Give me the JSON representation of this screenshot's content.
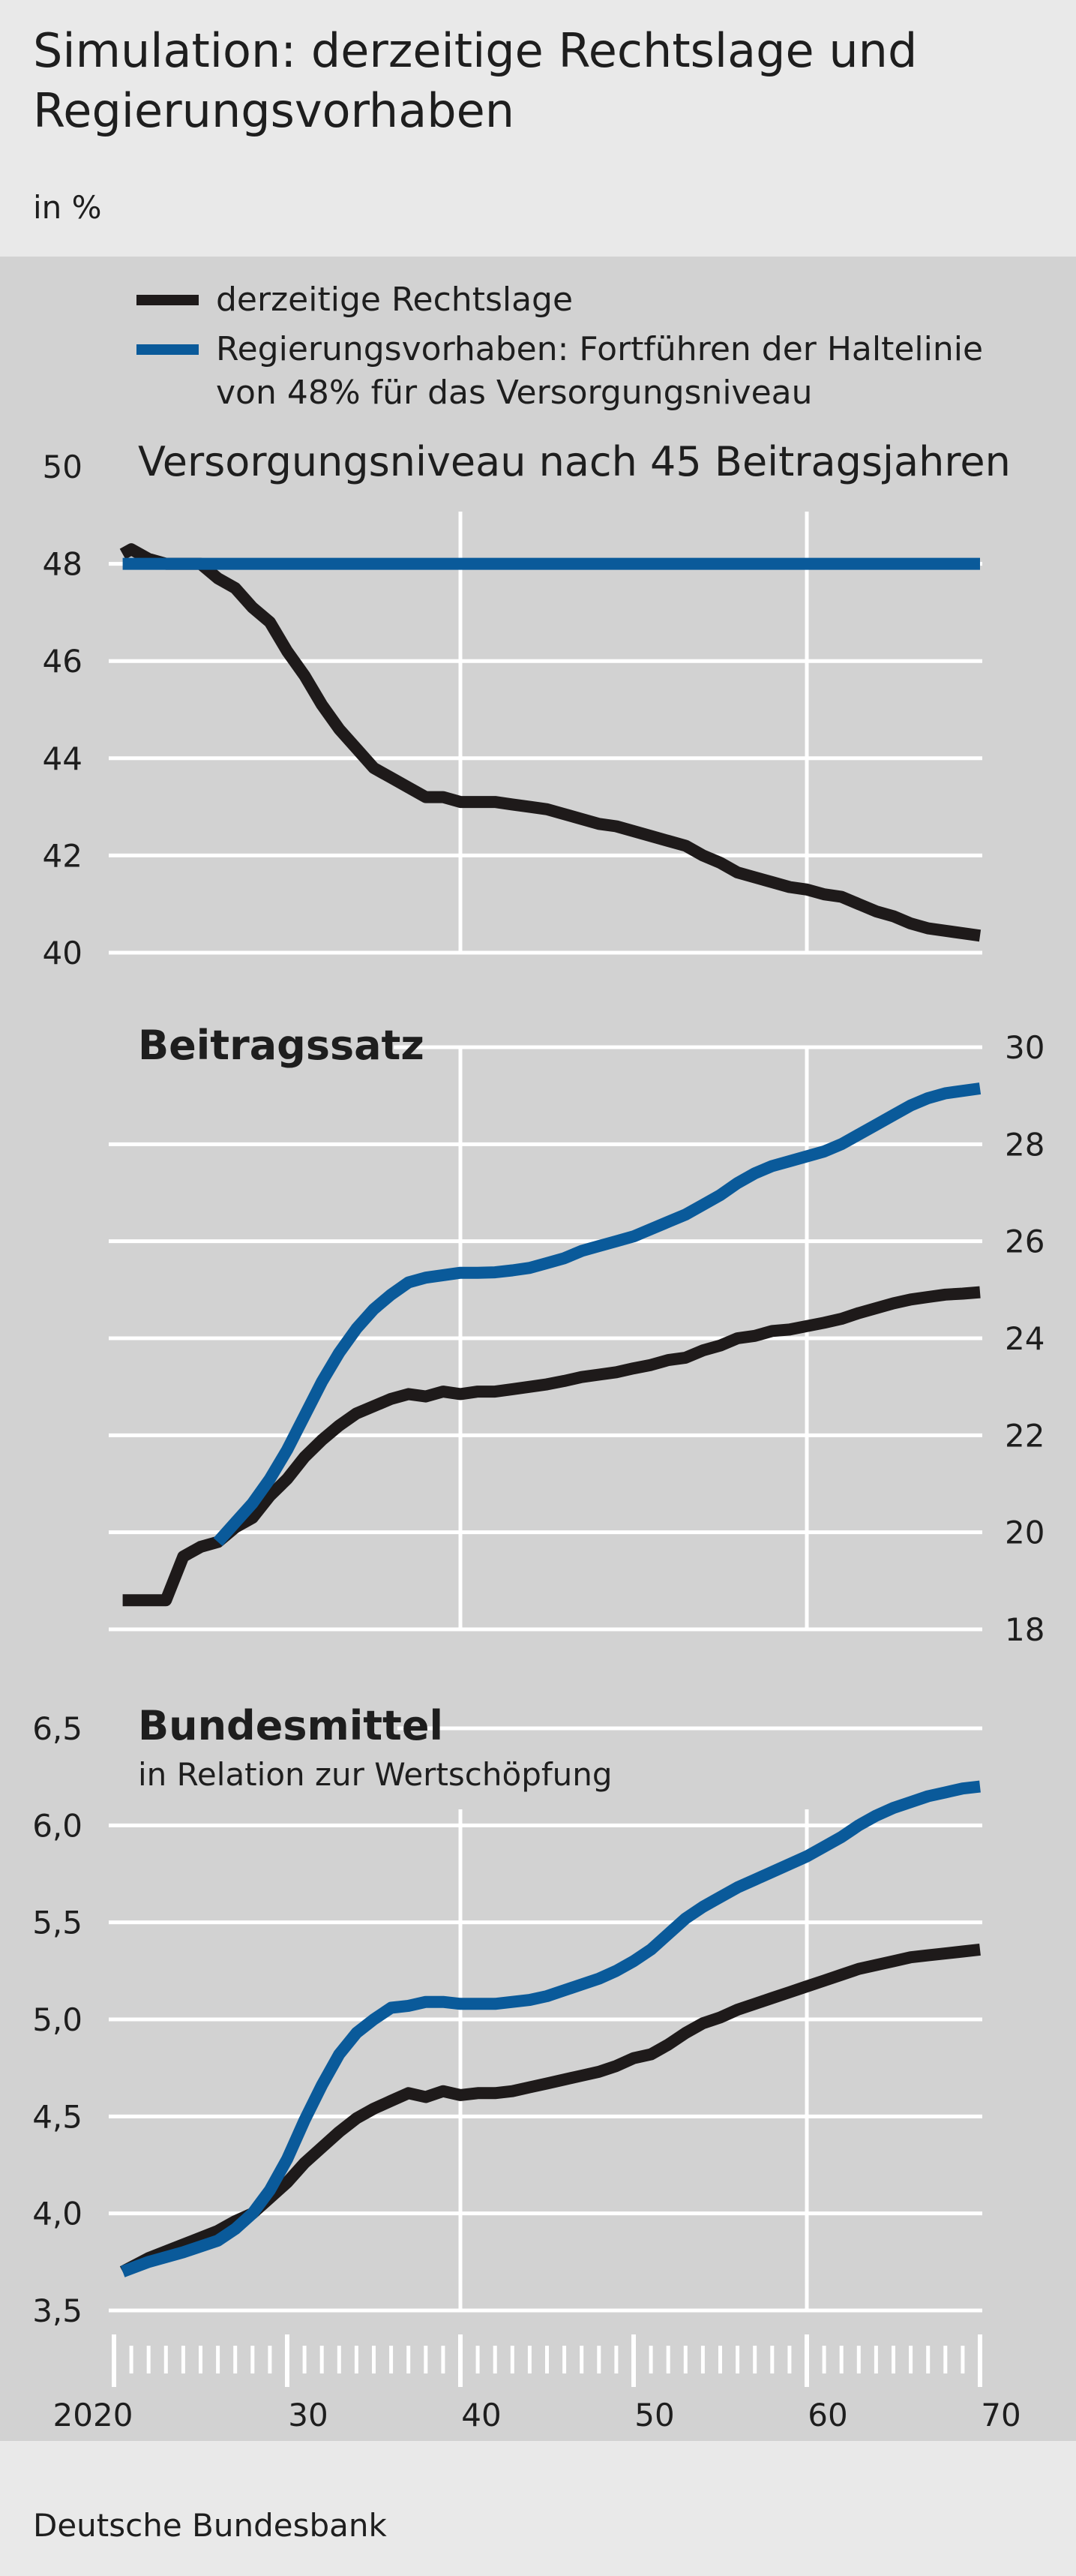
{
  "header": {
    "title": "Simulation: derzeitige Rechtslage und Regierungsvorhaben",
    "unit": "in %"
  },
  "footer": {
    "source": "Deutsche Bundesbank"
  },
  "colors": {
    "black_series": "#1e1a1a",
    "blue_series": "#0a5a9a",
    "grid": "#ffffff",
    "panel_bg": "#d2d2d2",
    "page_bg": "#e9e9e9"
  },
  "chart_data": {
    "type": "line",
    "legend": [
      {
        "label": "derzeitige Rechtslage",
        "color": "#1e1a1a"
      },
      {
        "label_lines": [
          "Regierungsvorhaben: Fortführen der Haltelinie",
          "von 48% für das Versorgungsniveau"
        ],
        "color": "#0a5a9a"
      }
    ],
    "x_ticks": [
      {
        "value": 2020,
        "label": "2020"
      },
      {
        "value": 2030,
        "label": "30"
      },
      {
        "value": 2040,
        "label": "40"
      },
      {
        "value": 2050,
        "label": "50"
      },
      {
        "value": 2060,
        "label": "60"
      },
      {
        "value": 2070,
        "label": "70"
      }
    ],
    "xlim": [
      2020,
      2070
    ],
    "panels": [
      {
        "title": "Versorgungsniveau nach 45 Beitragsjahren",
        "subtitle": "",
        "axis_side": "left",
        "ylim": [
          40,
          50
        ],
        "y_ticks": [
          {
            "value": 40,
            "label": "40"
          },
          {
            "value": 42,
            "label": "42"
          },
          {
            "value": 44,
            "label": "44"
          },
          {
            "value": 46,
            "label": "46"
          },
          {
            "value": 48,
            "label": "48"
          },
          {
            "value": 50,
            "label": "50"
          }
        ],
        "series": [
          {
            "key": "current",
            "x": [
              2020.5,
              2021,
              2022,
              2023,
              2024,
              2025,
              2026,
              2027,
              2028,
              2029,
              2030,
              2031,
              2032,
              2033,
              2034,
              2035,
              2036,
              2037,
              2038,
              2039,
              2040,
              2041,
              2042,
              2043,
              2044,
              2045,
              2046,
              2047,
              2048,
              2049,
              2050,
              2051,
              2052,
              2053,
              2054,
              2055,
              2056,
              2057,
              2058,
              2059,
              2060,
              2061,
              2062,
              2063,
              2064,
              2065,
              2066,
              2067,
              2068,
              2069,
              2070
            ],
            "values": [
              48.2,
              48.3,
              48.1,
              48.0,
              48.0,
              48.0,
              47.7,
              47.5,
              47.1,
              46.8,
              46.2,
              45.7,
              45.1,
              44.6,
              44.2,
              43.8,
              43.6,
              43.4,
              43.2,
              43.2,
              43.1,
              43.1,
              43.1,
              43.05,
              43.0,
              42.95,
              42.85,
              42.75,
              42.65,
              42.6,
              42.5,
              42.4,
              42.3,
              42.2,
              42.0,
              41.85,
              41.65,
              41.55,
              41.45,
              41.35,
              41.3,
              41.2,
              41.15,
              41.0,
              40.85,
              40.75,
              40.6,
              40.5,
              40.45,
              40.4,
              40.35
            ]
          },
          {
            "key": "plan",
            "x": [
              2020.5,
              2070
            ],
            "values": [
              48.0,
              48.0
            ]
          }
        ]
      },
      {
        "title": "Beitragssatz",
        "subtitle": "",
        "axis_side": "right",
        "ylim": [
          18,
          30
        ],
        "y_ticks": [
          {
            "value": 18,
            "label": "18"
          },
          {
            "value": 20,
            "label": "20"
          },
          {
            "value": 22,
            "label": "22"
          },
          {
            "value": 24,
            "label": "24"
          },
          {
            "value": 26,
            "label": "26"
          },
          {
            "value": 28,
            "label": "28"
          },
          {
            "value": 30,
            "label": "30"
          }
        ],
        "series": [
          {
            "key": "current",
            "x": [
              2020.5,
              2021,
              2022,
              2023,
              2024,
              2025,
              2026,
              2027,
              2028,
              2029,
              2030,
              2031,
              2032,
              2033,
              2034,
              2035,
              2036,
              2037,
              2038,
              2039,
              2040,
              2041,
              2042,
              2043,
              2044,
              2045,
              2046,
              2047,
              2048,
              2049,
              2050,
              2051,
              2052,
              2053,
              2054,
              2055,
              2056,
              2057,
              2058,
              2059,
              2060,
              2061,
              2062,
              2063,
              2064,
              2065,
              2066,
              2067,
              2068,
              2069,
              2070
            ],
            "values": [
              18.6,
              18.6,
              18.6,
              18.6,
              19.5,
              19.7,
              19.8,
              20.1,
              20.3,
              20.75,
              21.1,
              21.55,
              21.9,
              22.2,
              22.45,
              22.6,
              22.75,
              22.85,
              22.8,
              22.9,
              22.85,
              22.9,
              22.9,
              22.95,
              23.0,
              23.05,
              23.12,
              23.2,
              23.25,
              23.3,
              23.38,
              23.45,
              23.55,
              23.6,
              23.75,
              23.85,
              24.0,
              24.05,
              24.15,
              24.18,
              24.25,
              24.32,
              24.4,
              24.52,
              24.62,
              24.72,
              24.8,
              24.85,
              24.9,
              24.92,
              24.95
            ]
          },
          {
            "key": "plan",
            "x": [
              2026,
              2027,
              2028,
              2029,
              2030,
              2031,
              2032,
              2033,
              2034,
              2035,
              2036,
              2037,
              2038,
              2039,
              2040,
              2041,
              2042,
              2043,
              2044,
              2045,
              2046,
              2047,
              2048,
              2049,
              2050,
              2051,
              2052,
              2053,
              2054,
              2055,
              2056,
              2057,
              2058,
              2059,
              2060,
              2061,
              2062,
              2063,
              2064,
              2065,
              2066,
              2067,
              2068,
              2069,
              2070
            ],
            "values": [
              19.8,
              20.2,
              20.6,
              21.1,
              21.7,
              22.4,
              23.1,
              23.7,
              24.2,
              24.6,
              24.9,
              25.15,
              25.25,
              25.3,
              25.35,
              25.35,
              25.36,
              25.4,
              25.45,
              25.55,
              25.65,
              25.8,
              25.9,
              26.0,
              26.1,
              26.25,
              26.4,
              26.55,
              26.75,
              26.95,
              27.2,
              27.4,
              27.55,
              27.65,
              27.75,
              27.85,
              28.0,
              28.2,
              28.4,
              28.6,
              28.8,
              28.95,
              29.05,
              29.1,
              29.15
            ]
          }
        ]
      },
      {
        "title": "Bundesmittel",
        "subtitle": "in Relation zur Wertschöpfung",
        "axis_side": "left",
        "ylim": [
          3.5,
          6.5
        ],
        "y_ticks": [
          {
            "value": 3.5,
            "label": "3,5"
          },
          {
            "value": 4.0,
            "label": "4,0"
          },
          {
            "value": 4.5,
            "label": "4,5"
          },
          {
            "value": 5.0,
            "label": "5,0"
          },
          {
            "value": 5.5,
            "label": "5,5"
          },
          {
            "value": 6.0,
            "label": "6,0"
          },
          {
            "value": 6.5,
            "label": "6,5"
          }
        ],
        "series": [
          {
            "key": "current",
            "x": [
              2020.5,
              2022,
              2024,
              2026,
              2027,
              2028,
              2029,
              2030,
              2031,
              2032,
              2033,
              2034,
              2035,
              2036,
              2037,
              2038,
              2039,
              2040,
              2041,
              2042,
              2043,
              2044,
              2045,
              2046,
              2047,
              2048,
              2049,
              2050,
              2051,
              2052,
              2053,
              2054,
              2055,
              2056,
              2057,
              2058,
              2059,
              2060,
              2061,
              2062,
              2063,
              2064,
              2065,
              2066,
              2067,
              2068,
              2069,
              2070
            ],
            "values": [
              3.7,
              3.77,
              3.84,
              3.91,
              3.96,
              4.0,
              4.08,
              4.16,
              4.26,
              4.34,
              4.42,
              4.49,
              4.54,
              4.58,
              4.62,
              4.6,
              4.63,
              4.61,
              4.62,
              4.62,
              4.63,
              4.65,
              4.67,
              4.69,
              4.71,
              4.73,
              4.76,
              4.8,
              4.82,
              4.87,
              4.93,
              4.98,
              5.01,
              5.05,
              5.08,
              5.11,
              5.14,
              5.17,
              5.2,
              5.23,
              5.26,
              5.28,
              5.3,
              5.32,
              5.33,
              5.34,
              5.35,
              5.36
            ]
          },
          {
            "key": "plan",
            "x": [
              2020.5,
              2022,
              2024,
              2026,
              2027,
              2028,
              2029,
              2030,
              2031,
              2032,
              2033,
              2034,
              2035,
              2036,
              2037,
              2038,
              2039,
              2040,
              2041,
              2042,
              2043,
              2044,
              2045,
              2046,
              2047,
              2048,
              2049,
              2050,
              2051,
              2052,
              2053,
              2054,
              2055,
              2056,
              2057,
              2058,
              2059,
              2060,
              2061,
              2062,
              2063,
              2064,
              2065,
              2066,
              2067,
              2068,
              2069,
              2070
            ],
            "values": [
              3.7,
              3.75,
              3.8,
              3.86,
              3.92,
              4.0,
              4.12,
              4.28,
              4.48,
              4.66,
              4.82,
              4.93,
              5.0,
              5.06,
              5.07,
              5.09,
              5.09,
              5.08,
              5.08,
              5.08,
              5.09,
              5.1,
              5.12,
              5.15,
              5.18,
              5.21,
              5.25,
              5.3,
              5.36,
              5.44,
              5.52,
              5.58,
              5.63,
              5.68,
              5.72,
              5.76,
              5.8,
              5.84,
              5.89,
              5.94,
              6.0,
              6.05,
              6.09,
              6.12,
              6.15,
              6.17,
              6.19,
              6.2
            ]
          }
        ]
      }
    ]
  }
}
